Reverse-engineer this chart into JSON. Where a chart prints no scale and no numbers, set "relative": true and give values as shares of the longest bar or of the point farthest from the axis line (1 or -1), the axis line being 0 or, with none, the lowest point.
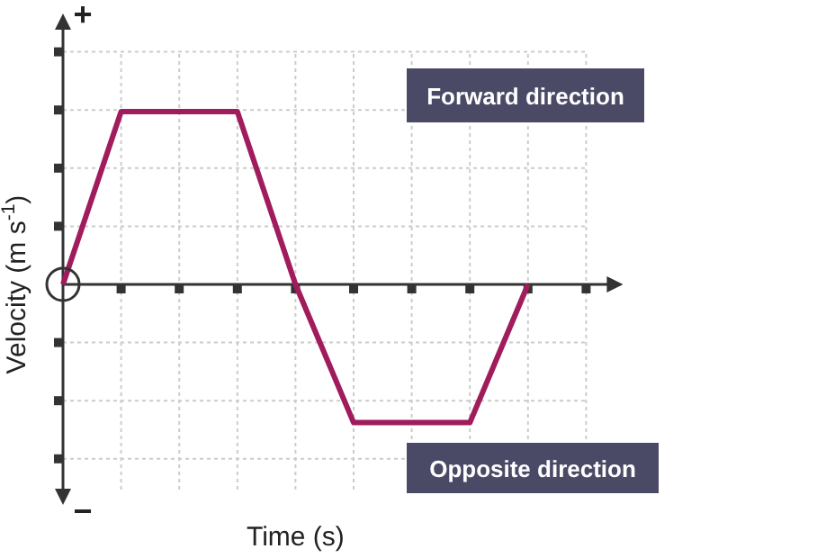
{
  "chart_data": {
    "type": "line",
    "relative": true,
    "xlabel": "Time (s)",
    "ylabel": "Velocity (m s$^{-1}$)",
    "categories": [
      null,
      null,
      null,
      null,
      null,
      null,
      null,
      null,
      null,
      null
    ],
    "series": [
      {
        "color": "#a01c5c",
        "values": [
          0,
          1,
          1,
          1,
          0,
          -0.8,
          -0.8,
          -0.8,
          0,
          null
        ]
      }
    ],
    "annotations": [
      "Forward direction",
      "Opposite direction",
      "+",
      "−"
    ],
    "grid": true,
    "marker": "none",
    "line_style": "solid"
  }
}
